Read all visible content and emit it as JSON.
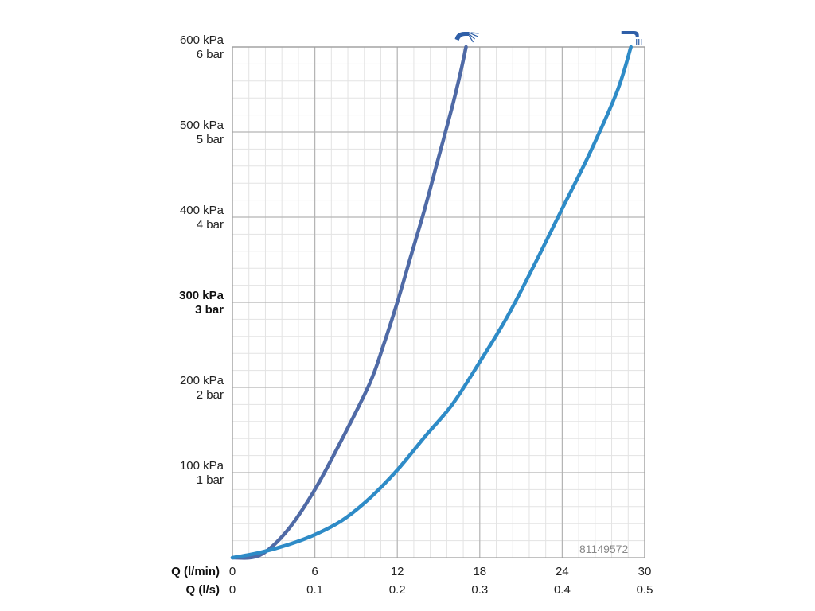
{
  "chart_data": {
    "type": "line",
    "reference_id": "81149572",
    "x_axis": {
      "label_primary": "Q (l/min)",
      "label_secondary": "Q (l/s)",
      "xlim": [
        0,
        30
      ],
      "ticks": [
        {
          "value": 0,
          "primary": "0",
          "secondary": "0"
        },
        {
          "value": 6,
          "primary": "6",
          "secondary": "0.1"
        },
        {
          "value": 12,
          "primary": "12",
          "secondary": "0.2"
        },
        {
          "value": 18,
          "primary": "18",
          "secondary": "0.3"
        },
        {
          "value": 24,
          "primary": "24",
          "secondary": "0.4"
        },
        {
          "value": 30,
          "primary": "30",
          "secondary": "0.5"
        }
      ]
    },
    "y_axis": {
      "ylim": [
        0,
        600
      ],
      "ticks": [
        {
          "value": 100,
          "primary": "100 kPa",
          "secondary": "1 bar",
          "bold": false
        },
        {
          "value": 200,
          "primary": "200 kPa",
          "secondary": "2 bar",
          "bold": false
        },
        {
          "value": 300,
          "primary": "300 kPa",
          "secondary": "3 bar",
          "bold": true
        },
        {
          "value": 400,
          "primary": "400 kPa",
          "secondary": "4 bar",
          "bold": false
        },
        {
          "value": 500,
          "primary": "500 kPa",
          "secondary": "5 bar",
          "bold": false
        },
        {
          "value": 600,
          "primary": "600 kPa",
          "secondary": "6 bar",
          "bold": false
        }
      ]
    },
    "grid": true,
    "series": [
      {
        "icon": "shower-head-spray-icon",
        "color": "#4f6aa6",
        "points": [
          [
            0,
            0
          ],
          [
            2,
            3
          ],
          [
            4,
            32
          ],
          [
            6,
            80
          ],
          [
            8,
            140
          ],
          [
            10,
            205
          ],
          [
            11,
            250
          ],
          [
            12,
            300
          ],
          [
            13,
            355
          ],
          [
            14,
            410
          ],
          [
            15,
            470
          ],
          [
            16,
            530
          ],
          [
            16.6,
            570
          ],
          [
            17,
            600
          ]
        ]
      },
      {
        "icon": "bath-spout-icon",
        "color": "#2e8bc7",
        "points": [
          [
            0,
            0
          ],
          [
            2,
            6
          ],
          [
            4,
            15
          ],
          [
            6,
            27
          ],
          [
            8,
            44
          ],
          [
            10,
            70
          ],
          [
            12,
            103
          ],
          [
            14,
            142
          ],
          [
            16,
            180
          ],
          [
            18,
            230
          ],
          [
            20,
            283
          ],
          [
            22,
            345
          ],
          [
            24,
            410
          ],
          [
            26,
            475
          ],
          [
            28,
            548
          ],
          [
            29,
            600
          ]
        ]
      }
    ]
  }
}
